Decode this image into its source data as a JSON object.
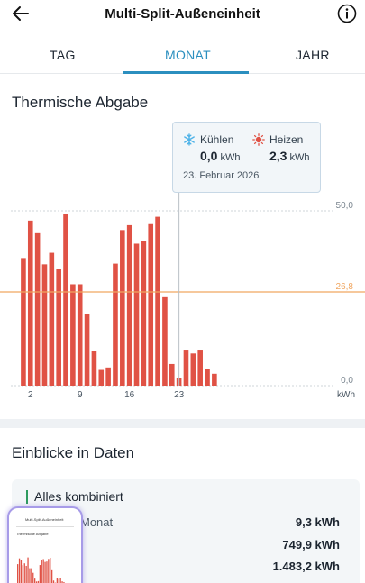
{
  "header": {
    "title": "Multi-Split-Außeneinheit",
    "back_icon": "arrow-left-icon",
    "info_icon": "info-icon"
  },
  "tabs": [
    {
      "label": "TAG",
      "active": false
    },
    {
      "label": "MONAT",
      "active": true
    },
    {
      "label": "JAHR",
      "active": false
    }
  ],
  "chart_section": {
    "title": "Thermische Abgabe"
  },
  "tooltip": {
    "cooling_label": "Kühlen",
    "cooling_value": "0,0",
    "heating_label": "Heizen",
    "heating_value": "2,3",
    "unit": "kWh",
    "date": "23. Februar 2026"
  },
  "chart_data": {
    "type": "bar",
    "categories": [
      1,
      2,
      3,
      4,
      5,
      6,
      7,
      8,
      9,
      10,
      11,
      12,
      13,
      14,
      15,
      16,
      17,
      18,
      19,
      20,
      21,
      22,
      23,
      24,
      25,
      26,
      27,
      28
    ],
    "values": [
      36.5,
      47.2,
      43.6,
      34.7,
      38.0,
      33.4,
      49.0,
      29.0,
      29.0,
      20.5,
      9.8,
      4.5,
      5.2,
      34.9,
      44.5,
      45.9,
      40.6,
      41.4,
      46.2,
      48.3,
      25.3,
      6.2,
      2.3,
      10.3,
      9.2,
      10.3,
      4.8,
      3.4
    ],
    "xticks": [
      "2",
      "9",
      "16",
      "23"
    ],
    "xtick_positions": [
      2,
      9,
      16,
      23
    ],
    "yticks": [
      "50,0",
      "0,0"
    ],
    "ylabel": "kWh",
    "ylim": [
      0,
      50
    ],
    "average_value": 26.8,
    "average_label": "26,8",
    "selected_day": 23,
    "bar_color": "#e05245",
    "average_color": "#f0a660",
    "grid": true
  },
  "insights": {
    "title": "Einblicke in Daten",
    "header": "Alles kombiniert",
    "rows": [
      {
        "label": "Monat",
        "value": "9,3 kWh"
      },
      {
        "label": "",
        "value": "749,9 kWh"
      },
      {
        "label": "",
        "value": "1.483,2 kWh"
      }
    ]
  },
  "thumbnail": {
    "title": "Multi-Split-Außeneinheit",
    "subtitle": "Thermische Abgabe"
  },
  "colors": {
    "accent": "#2b8fbf",
    "bar": "#e05245",
    "average": "#f0a660",
    "cooling_icon": "#4fb3e8",
    "heating_icon": "#e05245",
    "insight_marker": "#2e9b5f"
  }
}
